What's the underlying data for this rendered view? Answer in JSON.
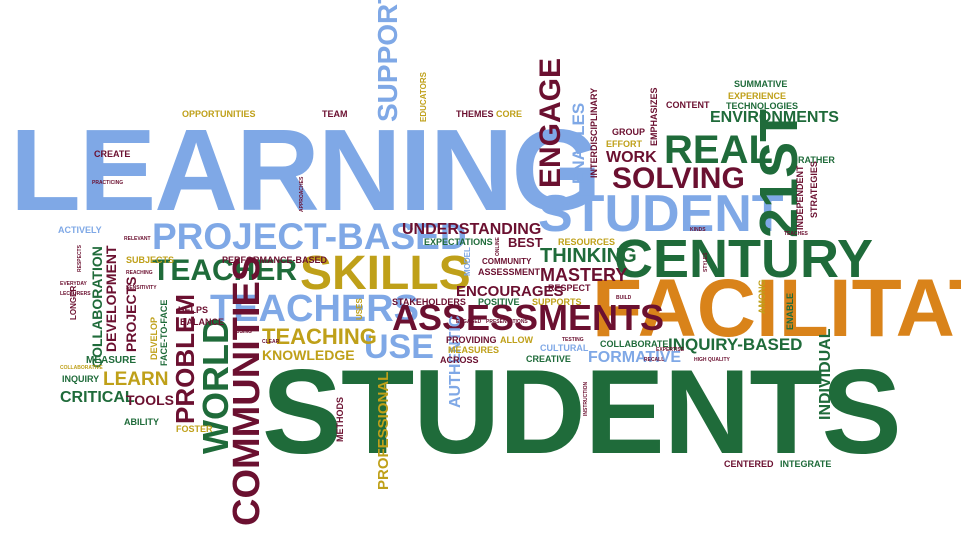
{
  "words": {
    "learning": "LEARNING",
    "students": "STUDENTS",
    "facilitate": "FACILITATE",
    "student": "STUDENT",
    "century": "CENTURY",
    "st21": "21ST",
    "project_based": "PROJECT-BASED",
    "skills": "SKILLS",
    "teachers": "TEACHERS",
    "teacher": "TEACHER",
    "assessments": "ASSESSMENTS",
    "communities": "COMMUNITIES",
    "world": "WORLD",
    "problem": "PROBLEM",
    "real": "REAL",
    "solving": "SOLVING",
    "engage": "ENGAGE",
    "support": "SUPPORT",
    "use": "USE",
    "teaching": "TEACHING",
    "thinking": "THINKING",
    "understanding": "UNDERSTANDING",
    "environments": "ENVIRONMENTS",
    "mastery": "MASTERY",
    "encourages": "ENCOURAGES",
    "learn": "LEARN",
    "critical": "CRITICAL",
    "formative": "FORMATIVE",
    "inquiry_based": "INQUIRY-BASED",
    "knowledge": "KNOWLEDGE",
    "tools": "TOOLS",
    "authentic": "AUTHENTIC",
    "professional": "PROFESSIONAL",
    "individual": "INDIVIDUAL",
    "enables": "ENABLES",
    "work": "WORK",
    "best": "BEST",
    "collaboration": "COLLABORATION",
    "development": "DEVELOPMENT",
    "projects": "PROJECTS",
    "summative": "SUMMATIVE",
    "experience": "EXPERIENCE",
    "technologies": "TECHNOLOGIES",
    "content": "CONTENT",
    "emphasizes": "EMPHASIZES",
    "group": "GROUP",
    "effort": "EFFORT",
    "interdisciplinary": "INTERDISCIPLINARY",
    "independent": "INDEPENDENT",
    "strategies": "STRATEGIES",
    "rather": "RATHER",
    "opportunities": "OPPORTUNITIES",
    "team": "TEAM",
    "educators": "EDUCATORS",
    "themes": "THEMES",
    "core": "CORE",
    "create": "CREATE",
    "practicing": "PRACTICING",
    "actively": "ACTIVELY",
    "relevant": "RELEVANT",
    "subjects": "SUBJECTS",
    "performance_based": "PERFORMANCE-BASED",
    "reaching": "REACHING",
    "sensitivity": "SENSITIVITY",
    "helps": "HELPS",
    "balance": "BALANCE",
    "develop": "DEVELOP",
    "face_to_face": "FACE-TO-FACE",
    "measure": "MEASURE",
    "inquiry": "INQUIRY",
    "ability": "ABILITY",
    "foster": "FOSTER",
    "methods": "METHODS",
    "expectations": "EXPECTATIONS",
    "community": "COMMUNITY",
    "assessment": "ASSESSMENT",
    "resources": "RESOURCES",
    "respect": "RESPECT",
    "stakeholders": "STAKEHOLDERS",
    "positive": "POSITIVE",
    "supports": "SUPPORTS",
    "providing": "PROVIDING",
    "allow": "ALLOW",
    "measures": "MEASURES",
    "cultural": "CULTURAL",
    "creative": "CREATIVE",
    "across": "ACROSS",
    "collaborate": "COLLABORATE",
    "testing": "TESTING",
    "instruction": "INSTRUCTION",
    "enable": "ENABLE",
    "among": "AMONG",
    "centered": "CENTERED",
    "integrate": "INTEGRATE",
    "expertise": "EXPERTISE",
    "recall": "RECALL",
    "high_quality": "HIGH QUALITY",
    "build": "BUILD",
    "styles": "STYLES",
    "teaches": "TEACHES",
    "kinds": "KINDS",
    "longer": "LONGER",
    "lecturers": "LECTURERS",
    "everyday": "EVERYDAY",
    "respects": "RESPECTS",
    "uses": "USES",
    "model": "MODEL",
    "online": "ONLINE",
    "engaged": "ENGAGED",
    "presentations": "PRESENTATIONS",
    "approaches": "APPROACHES",
    "using": "USING",
    "clear": "CLEAR",
    "collaborative": "COLLABORATIVE"
  },
  "colors": {
    "blue": "#7fa8e6",
    "green": "#1f6b3a",
    "maroon": "#6b1030",
    "gold": "#bfa019",
    "orange": "#d9831a"
  }
}
